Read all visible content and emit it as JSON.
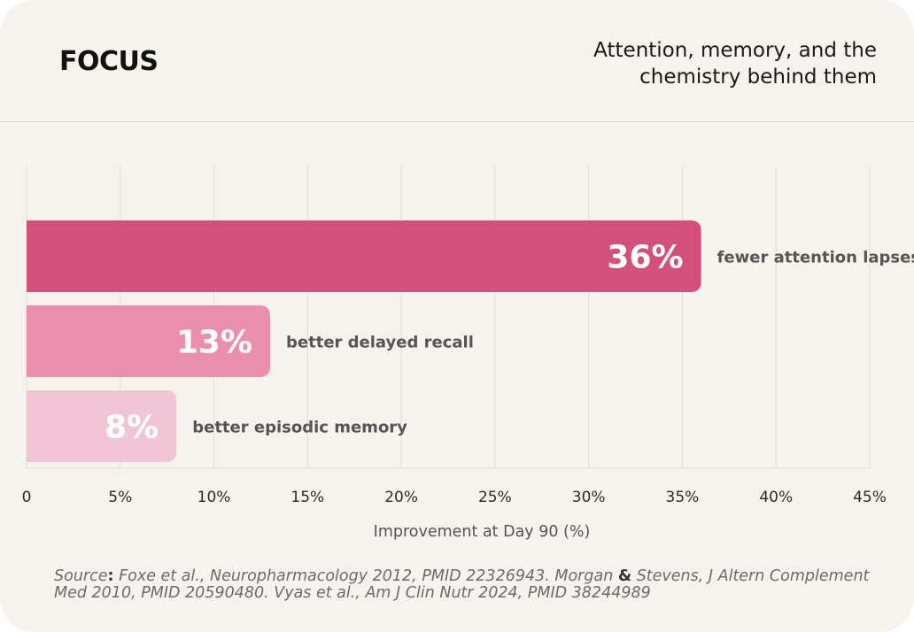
{
  "header": {
    "brand": "FOCUS",
    "tagline_line1": "Attention, memory, and the",
    "tagline_line2": "chemistry behind them"
  },
  "chart_data": {
    "type": "bar",
    "orientation": "horizontal",
    "categories": [
      "fewer attention lapses",
      "better delayed recall",
      "better episodic memory"
    ],
    "values": [
      36,
      13,
      8
    ],
    "value_labels": [
      "36%",
      "13%",
      "8%"
    ],
    "bar_colors": [
      "#d4507c",
      "#ec8fae",
      "#f0c6d6"
    ],
    "value_label_colors": [
      "#ffffff",
      "#ffffff",
      "#ffffff"
    ],
    "xlabel": "Improvement at Day 90 (%)",
    "xlim": [
      0,
      45
    ],
    "xticks": [
      0,
      5,
      10,
      15,
      20,
      25,
      30,
      35,
      40,
      45
    ],
    "xtick_labels": [
      "0",
      "5%",
      "10%",
      "15%",
      "20%",
      "25%",
      "30%",
      "35%",
      "40%",
      "45%"
    ],
    "grid": "vertical",
    "grid_color": "#e3ddd8",
    "category_label_color": "#555555"
  },
  "source": {
    "prefix": "Source",
    "colon": ":",
    "part1": " Foxe et al., Neuropharmacology 2012, PMID 22326943. Morgan ",
    "amp": "&",
    "part2": " Stevens, J Altern Complement Med 2010, PMID 20590480. Vyas et al., Am J Clin Nutr 2024, PMID 38244989"
  }
}
